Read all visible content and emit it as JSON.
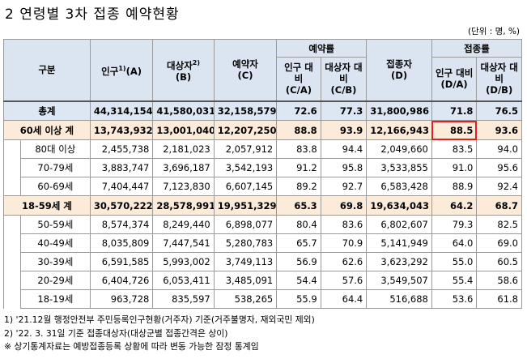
{
  "title": "2  연령별 3차 접종 예약현황",
  "unit_note": "(단위 : 명, %)",
  "header": {
    "category": "구분",
    "population": "인구",
    "population_sup": "1)",
    "population_code": "(A)",
    "target": "대상자",
    "target_sup": "2)",
    "target_code": "(B)",
    "reservation": "예약자",
    "reservation_code": "(C)",
    "reservation_rate": "예약률",
    "pop_ratio": "인구 대비",
    "pop_ratio_code": "(C/A)",
    "target_ratio": "대상자 대비",
    "target_ratio_code": "(C/B)",
    "vaccinated": "접종자",
    "vaccinated_code": "(D)",
    "vaccination_rate": "접종률",
    "vpop_ratio": "인구 대비",
    "vpop_ratio_code": "(D/A)",
    "vtarget_ratio": "대상자 대비",
    "vtarget_ratio_code": "(D/B)"
  },
  "rows": [
    {
      "label": "총계",
      "population": "44,314,154",
      "target": "41,580,031",
      "reservation": "32,158,579",
      "r_pop": "72.6",
      "r_target": "77.3",
      "vaccinated": "31,800,986",
      "v_pop": "71.8",
      "v_target": "76.5"
    },
    {
      "label": "60세 이상 계",
      "population": "13,743,932",
      "target": "13,001,040",
      "reservation": "12,207,250",
      "r_pop": "88.8",
      "r_target": "93.9",
      "vaccinated": "12,166,943",
      "v_pop": "88.5",
      "v_target": "93.6"
    },
    {
      "label": "80대 이상",
      "population": "2,455,738",
      "target": "2,181,023",
      "reservation": "2,057,912",
      "r_pop": "83.8",
      "r_target": "94.4",
      "vaccinated": "2,049,660",
      "v_pop": "83.5",
      "v_target": "94.0"
    },
    {
      "label": "70-79세",
      "population": "3,883,747",
      "target": "3,696,187",
      "reservation": "3,542,193",
      "r_pop": "91.2",
      "r_target": "95.8",
      "vaccinated": "3,533,855",
      "v_pop": "91.0",
      "v_target": "95.6"
    },
    {
      "label": "60-69세",
      "population": "7,404,447",
      "target": "7,123,830",
      "reservation": "6,607,145",
      "r_pop": "89.2",
      "r_target": "92.7",
      "vaccinated": "6,583,428",
      "v_pop": "88.9",
      "v_target": "92.4"
    },
    {
      "label": "18-59세 계",
      "population": "30,570,222",
      "target": "28,578,991",
      "reservation": "19,951,329",
      "r_pop": "65.3",
      "r_target": "69.8",
      "vaccinated": "19,634,043",
      "v_pop": "64.2",
      "v_target": "68.7"
    },
    {
      "label": "50-59세",
      "population": "8,574,374",
      "target": "8,249,440",
      "reservation": "6,898,077",
      "r_pop": "80.4",
      "r_target": "83.6",
      "vaccinated": "6,802,607",
      "v_pop": "79.3",
      "v_target": "82.5"
    },
    {
      "label": "40-49세",
      "population": "8,035,809",
      "target": "7,447,541",
      "reservation": "5,280,783",
      "r_pop": "65.7",
      "r_target": "70.9",
      "vaccinated": "5,141,949",
      "v_pop": "64.0",
      "v_target": "69.0"
    },
    {
      "label": "30-39세",
      "population": "6,591,585",
      "target": "5,993,002",
      "reservation": "3,749,113",
      "r_pop": "56.9",
      "r_target": "62.6",
      "vaccinated": "3,623,292",
      "v_pop": "55.0",
      "v_target": "60.5"
    },
    {
      "label": "20-29세",
      "population": "6,404,726",
      "target": "6,053,411",
      "reservation": "3,485,091",
      "r_pop": "54.4",
      "r_target": "57.6",
      "vaccinated": "3,549,507",
      "v_pop": "55.4",
      "v_target": "58.6"
    },
    {
      "label": "18-19세",
      "population": "963,728",
      "target": "835,597",
      "reservation": "538,265",
      "r_pop": "55.9",
      "r_target": "64.4",
      "vaccinated": "516,688",
      "v_pop": "53.6",
      "v_target": "61.8"
    }
  ],
  "notes": [
    "1) '21.12월 행정안전부 주민등록인구현황(거주자) 기준(거주불명자, 재외국민 제외)",
    "2) '22. 3. 31일 기준 접종대상자(대상군별 접종간격은 상이)",
    "※ 상기통계자료는 예방접종등록 상황에 따라 변동 가능한 잠정 통계임"
  ],
  "colors": {
    "header_bg": "#dbe5f1",
    "total_bg": "#dde6f3",
    "group_bg": "#fdebd9",
    "highlight": "#e02020"
  }
}
